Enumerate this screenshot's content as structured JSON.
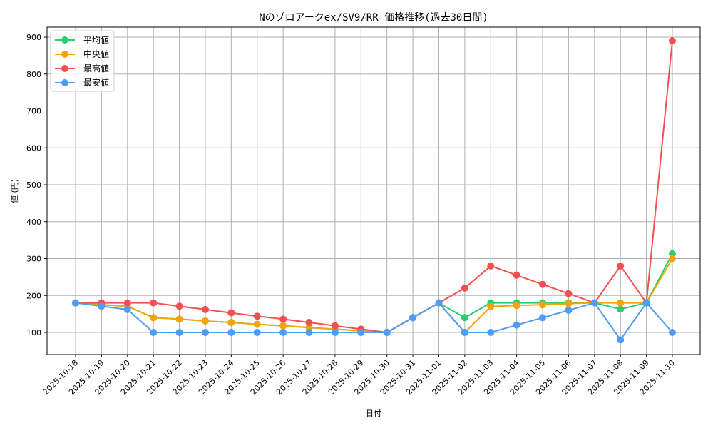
{
  "chart_data": {
    "type": "line",
    "title": "Nのゾロアークex/SV9/RR 価格推移(過去30日間)",
    "xlabel": "日付",
    "ylabel": "値 (円)",
    "ylim": [
      38,
      928
    ],
    "yticks": [
      100,
      200,
      300,
      400,
      500,
      600,
      700,
      800,
      900
    ],
    "grid": true,
    "legend_position": "upper left",
    "categories": [
      "2025-10-18",
      "2025-10-19",
      "2025-10-20",
      "2025-10-21",
      "2025-10-22",
      "2025-10-23",
      "2025-10-24",
      "2025-10-25",
      "2025-10-26",
      "2025-10-27",
      "2025-10-28",
      "2025-10-29",
      "2025-10-30",
      "2025-10-31",
      "2025-11-01",
      "2025-11-02",
      "2025-11-03",
      "2025-11-04",
      "2025-11-05",
      "2025-11-06",
      "2025-11-07",
      "2025-11-08",
      "2025-11-09",
      "2025-11-10"
    ],
    "series": [
      {
        "name": "平均値",
        "color": "#2ecc71",
        "values": [
          180,
          175,
          171,
          140,
          136,
          131,
          127,
          122,
          118,
          113,
          109,
          104,
          100,
          140,
          180,
          140,
          180,
          180,
          180,
          180,
          180,
          163,
          180,
          313
        ]
      },
      {
        "name": "中央値",
        "color": "#f5a30a",
        "values": [
          180,
          175,
          171,
          140,
          136,
          131,
          127,
          122,
          118,
          113,
          109,
          104,
          100,
          140,
          180,
          100,
          170,
          173,
          175,
          178,
          180,
          180,
          180,
          300
        ]
      },
      {
        "name": "最高値",
        "color": "#f25050",
        "values": [
          180,
          180,
          180,
          180,
          171,
          162,
          153,
          144,
          136,
          127,
          118,
          109,
          100,
          140,
          180,
          220,
          280,
          255,
          230,
          205,
          180,
          280,
          180,
          890
        ]
      },
      {
        "name": "最安値",
        "color": "#4e9cf5",
        "values": [
          180,
          171,
          162,
          100,
          100,
          100,
          100,
          100,
          100,
          100,
          100,
          100,
          100,
          140,
          180,
          100,
          100,
          120,
          140,
          160,
          180,
          80,
          180,
          100
        ]
      }
    ]
  }
}
